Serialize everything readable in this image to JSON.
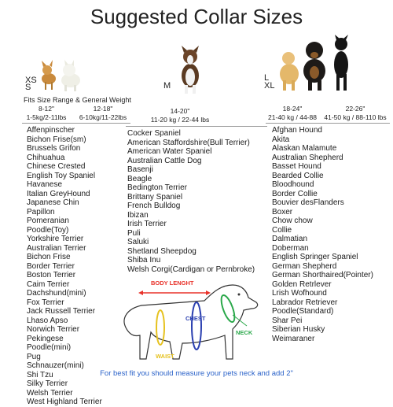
{
  "title": "Suggested Collar Sizes",
  "sizes": {
    "xs": "XS",
    "s": "S",
    "m": "M",
    "l": "L",
    "xl": "XL"
  },
  "fits_label": "Fits Size Range & General Weight",
  "ranges": [
    {
      "inches": "8-12\"",
      "weight": "1-5kg/2-11lbs"
    },
    {
      "inches": "12-18\"",
      "weight": "6-10kg/11-22lbs"
    },
    {
      "inches": "14-20\"",
      "weight": "11-20 kg / 22-44 lbs"
    },
    {
      "inches": "18-24\"",
      "weight": "21-40 kg / 44-88"
    },
    {
      "inches": "22-26\"",
      "weight": "41-50 kg / 88-110 lbs"
    }
  ],
  "breeds_small": [
    "Affenpinscher",
    "Bichon Frise(sm)",
    "Brussels Grifon",
    "Chihuahua",
    "Chinese Crested",
    "English Toy Spaniel",
    "Havanese",
    "Italian GreyHound",
    "Japanese Chin",
    "Papillon",
    "Pomeranian",
    "Poodle(Toy)",
    "Yorkshire Terrier",
    "Australian Terrier",
    "Bichon Frise",
    "Border Terrier",
    "Boston Terrier",
    "Caim Terrier",
    "Dachshund(mini)",
    "Fox Terrier",
    "Jack Russell Terrier",
    "Lhaso Apso",
    "Norwich Terrier",
    "Pekingese",
    "Poodle(mini)",
    "Pug",
    "Schnauzer(mini)",
    "Shi Tzu",
    "Silky Terrier",
    "Welsh Terrier",
    "West Highland Terrier"
  ],
  "breeds_medium": [
    "Cocker Spaniel",
    "American Staffordshire(Bull Terrier)",
    "American Water Spaniel",
    "Australian Cattle Dog",
    "Basenji",
    "Beagle",
    "Bedington Terrier",
    "Brittany Spaniel",
    "French Bulldog",
    "Ibizan",
    "Irish Terrier",
    "Puli",
    "Saluki",
    "Shetland Sheepdog",
    "Shiba Inu",
    "Welsh Corgi(Cardigan or Pernbroke)"
  ],
  "breeds_large": [
    "Afghan Hound",
    "Akita",
    "Alaskan Malamute",
    "Australian Shepherd",
    "Basset Hound",
    "Bearded Collie",
    "Bloodhound",
    "Border Collie",
    "Bouvier desFlanders",
    "Boxer",
    "Chow chow",
    "Collie",
    "Dalmatian",
    "Doberman",
    "English Springer Spaniel",
    "German Shepherd",
    "German Shorthaired(Pointer)",
    "Golden Retrlever",
    "Lrish Wofhound",
    "Labrador Retriever",
    "Poodle(Standard)",
    "Shar Pei",
    "Siberian Husky",
    "Weimaraner"
  ],
  "diagram": {
    "body_length": "BODY LENGHT",
    "chest": "CHEST",
    "neck": "NECK",
    "waist": "WAIST"
  },
  "footer": "For best fit you should measure your pets neck and add 2\"",
  "colors": {
    "body_length": "#e8322a",
    "chest": "#2a3fb0",
    "neck": "#2aa84a",
    "waist": "#e6c21f",
    "footer_text": "#2a62c9"
  }
}
